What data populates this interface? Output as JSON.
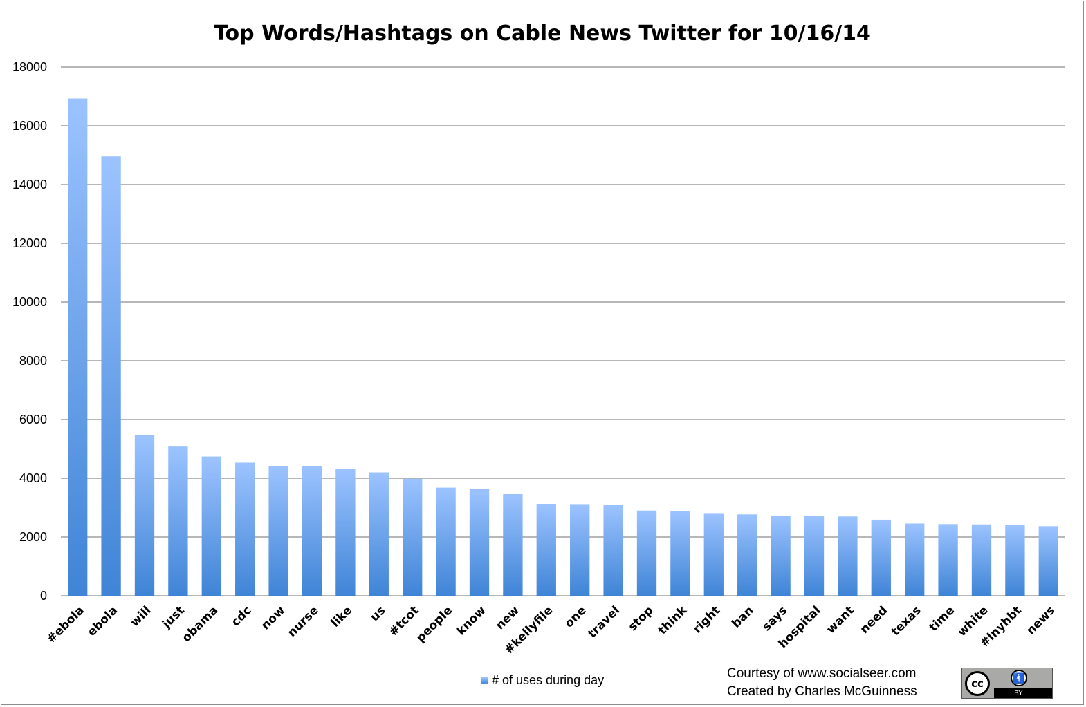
{
  "chart_data": {
    "type": "bar",
    "title": "Top Words/Hashtags on Cable News Twitter for 10/16/14",
    "xlabel": "",
    "ylabel": "",
    "ylim": [
      0,
      18000
    ],
    "yticks": [
      0,
      2000,
      4000,
      6000,
      8000,
      10000,
      12000,
      14000,
      16000,
      18000
    ],
    "grid": true,
    "legend_position": "bottom",
    "categories": [
      "#ebola",
      "ebola",
      "will",
      "just",
      "obama",
      "cdc",
      "now",
      "nurse",
      "like",
      "us",
      "#tcot",
      "people",
      "know",
      "new",
      "#kellyfile",
      "one",
      "travel",
      "stop",
      "think",
      "right",
      "ban",
      "says",
      "hospital",
      "want",
      "need",
      "texas",
      "time",
      "white",
      "#lnyhbt",
      "news"
    ],
    "series": [
      {
        "name": "# of uses during day",
        "values": [
          16930,
          14960,
          5460,
          5080,
          4740,
          4530,
          4410,
          4410,
          4320,
          4200,
          3980,
          3680,
          3640,
          3460,
          3130,
          3120,
          3090,
          2900,
          2870,
          2790,
          2770,
          2730,
          2720,
          2700,
          2590,
          2460,
          2440,
          2430,
          2400,
          2370
        ]
      }
    ]
  },
  "credits": {
    "line1": "Courtesy of www.socialseer.com",
    "line2": "Created by Charles McGuinness"
  },
  "badge": {
    "icon": "creative-commons-by-icon",
    "cc_text": "cc",
    "by_text": "BY"
  },
  "colors": {
    "bar_top": "#9cc3ff",
    "bar_bottom": "#3f84d6",
    "grid": "#8c8c8c"
  }
}
